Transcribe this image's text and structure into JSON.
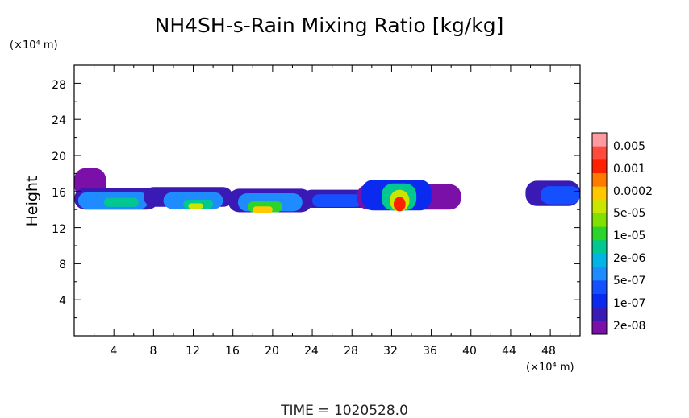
{
  "chart_data": {
    "type": "heatmap",
    "title": "NH4SH-s-Rain Mixing Ratio [kg/kg]",
    "xlabel": "",
    "ylabel": "Height",
    "x_unit": "(×10⁴ m)",
    "y_unit": "(×10⁴ m)",
    "xlim": [
      0,
      51
    ],
    "ylim": [
      0,
      30
    ],
    "x_ticks": [
      "4",
      "8",
      "12",
      "16",
      "20",
      "24",
      "28",
      "32",
      "36",
      "40",
      "44",
      "48"
    ],
    "y_ticks": [
      "4",
      "8",
      "12",
      "16",
      "20",
      "24",
      "28"
    ],
    "footer": "TIME = 1020528.0",
    "colorbar": {
      "labels": [
        "0.005",
        "0.001",
        "0.0002",
        "5e-05",
        "1e-05",
        "2e-06",
        "5e-07",
        "1e-07",
        "2e-08"
      ],
      "colors": [
        "#ff9aa0",
        "#ff4a3c",
        "#ff2000",
        "#ff7a00",
        "#ffc800",
        "#c8e600",
        "#80e000",
        "#2ad42a",
        "#00c890",
        "#00b4e6",
        "#1e8cff",
        "#1450ff",
        "#0a2af0",
        "#3a1ab4",
        "#7a10a8"
      ]
    },
    "regions": [
      {
        "x0": 0.0,
        "x1": 3.2,
        "y": 17.0,
        "h": 3.2,
        "level": 0
      },
      {
        "x0": 0.0,
        "x1": 8.5,
        "y": 15.2,
        "h": 2.4,
        "level": 1
      },
      {
        "x0": 0.4,
        "x1": 7.5,
        "y": 15.0,
        "h": 1.8,
        "level": 4
      },
      {
        "x0": 3.0,
        "x1": 6.5,
        "y": 14.8,
        "h": 1.0,
        "level": 6
      },
      {
        "x0": 7.0,
        "x1": 16.0,
        "y": 15.4,
        "h": 2.2,
        "level": 1
      },
      {
        "x0": 9.0,
        "x1": 15.0,
        "y": 15.0,
        "h": 1.8,
        "level": 4
      },
      {
        "x0": 11.0,
        "x1": 14.0,
        "y": 14.6,
        "h": 1.0,
        "level": 6
      },
      {
        "x0": 11.5,
        "x1": 13.0,
        "y": 14.4,
        "h": 0.6,
        "level": 9
      },
      {
        "x0": 15.5,
        "x1": 24.0,
        "y": 15.0,
        "h": 2.6,
        "level": 1
      },
      {
        "x0": 16.5,
        "x1": 23.0,
        "y": 14.8,
        "h": 2.0,
        "level": 4
      },
      {
        "x0": 17.5,
        "x1": 21.0,
        "y": 14.3,
        "h": 1.2,
        "level": 7
      },
      {
        "x0": 18.0,
        "x1": 20.0,
        "y": 14.0,
        "h": 0.7,
        "level": 10
      },
      {
        "x0": 23.0,
        "x1": 30.0,
        "y": 15.2,
        "h": 2.0,
        "level": 1
      },
      {
        "x0": 24.0,
        "x1": 29.0,
        "y": 15.0,
        "h": 1.4,
        "level": 3
      },
      {
        "x0": 28.5,
        "x1": 39.0,
        "y": 15.4,
        "h": 2.8,
        "level": 0
      },
      {
        "x0": 29.0,
        "x1": 36.0,
        "y": 15.6,
        "h": 3.4,
        "level": 2
      },
      {
        "x0": 31.0,
        "x1": 34.5,
        "y": 15.4,
        "h": 3.0,
        "level": 6
      },
      {
        "x0": 31.8,
        "x1": 33.8,
        "y": 15.0,
        "h": 2.4,
        "level": 9
      },
      {
        "x0": 32.2,
        "x1": 33.4,
        "y": 14.6,
        "h": 1.6,
        "level": 12
      },
      {
        "x0": 45.5,
        "x1": 51.0,
        "y": 15.8,
        "h": 2.8,
        "level": 1
      },
      {
        "x0": 47.0,
        "x1": 51.0,
        "y": 15.6,
        "h": 2.0,
        "level": 3
      }
    ]
  }
}
